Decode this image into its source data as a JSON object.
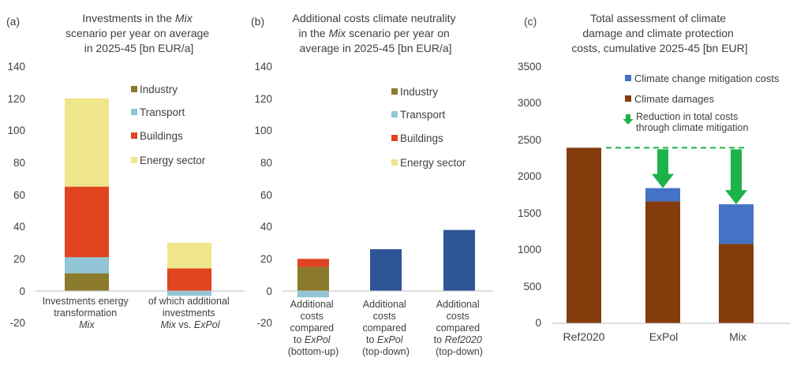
{
  "colors": {
    "industry": "#8B7A2B",
    "transport": "#92C5D6",
    "buildings": "#E04420",
    "energy_sector": "#F0E68C",
    "total": "#2E5597",
    "climate_damages": "#843C0C",
    "mitigation": "#4472C4",
    "arrow": "#1CB34A",
    "axis_text": "#404040"
  },
  "chart_data": [
    {
      "panel_label": "(a)",
      "type": "bar",
      "stacked": true,
      "title": [
        "Investments in the Mix",
        "scenario per year on average",
        "in 2025-45 [bn EUR/a]"
      ],
      "ylim": [
        -20,
        140
      ],
      "yticks": [
        "140",
        "120",
        "100",
        "80",
        "60",
        "40",
        "20",
        "0",
        "-20"
      ],
      "categories": [
        [
          "Investments energy",
          "transformation",
          "Mix"
        ],
        [
          "of which additional",
          "investments",
          "Mix vs. ExPol"
        ]
      ],
      "legend_placement": "top-right",
      "legend": [
        "Industry",
        "Transport",
        "Buildings",
        "Energy sector"
      ],
      "series": [
        {
          "name": "Industry",
          "values": [
            11,
            0
          ]
        },
        {
          "name": "Transport",
          "values": [
            10,
            -3
          ]
        },
        {
          "name": "Buildings",
          "values": [
            44,
            14
          ]
        },
        {
          "name": "Energy sector",
          "values": [
            55,
            16
          ]
        }
      ]
    },
    {
      "panel_label": "(b)",
      "type": "bar",
      "stacked": true,
      "title": [
        "Additional costs climate neutrality",
        "in the Mix scenario per year on",
        "average in 2025-45 [bn EUR/a]"
      ],
      "ylim": [
        -20,
        140
      ],
      "yticks": [
        "140",
        "120",
        "100",
        "80",
        "60",
        "40",
        "20",
        "0",
        "-20"
      ],
      "categories": [
        [
          "Additional",
          "costs",
          "compared",
          "to ExPol",
          "(bottom-up)"
        ],
        [
          "Additional",
          "costs",
          "compared",
          "to ExPol",
          "(top-down)"
        ],
        [
          "Additional",
          "costs",
          "compared",
          "to Ref2020",
          "(top-down)"
        ]
      ],
      "legend_placement": "top-right",
      "legend": [
        "Industry",
        "Transport",
        "Buildings",
        "Energy sector"
      ],
      "series": [
        {
          "name": "Industry",
          "values": [
            15,
            0,
            0
          ]
        },
        {
          "name": "Transport",
          "values": [
            -4,
            0,
            0
          ]
        },
        {
          "name": "Buildings",
          "values": [
            5,
            0,
            0
          ]
        },
        {
          "name": "Energy sector",
          "values": [
            0,
            0,
            0
          ]
        },
        {
          "values": [
            0,
            26,
            38
          ]
        }
      ]
    },
    {
      "panel_label": "(c)",
      "type": "bar",
      "stacked": true,
      "title": [
        "Total assessment of climate",
        "damage and climate protection",
        "costs, cumulative 2025-45 [bn EUR]"
      ],
      "ylim": [
        0,
        3500
      ],
      "yticks": [
        "3500",
        "3000",
        "2500",
        "2000",
        "1500",
        "1000",
        "500",
        "0"
      ],
      "categories": [
        "Ref2020",
        "ExPol",
        "Mix"
      ],
      "legend_placement": "top-right",
      "legend": [
        "Climate change mitigation costs",
        "Climate damages",
        "Reduction in total costs through climate mitigation"
      ],
      "series": [
        {
          "name": "Climate damages",
          "values": [
            2390,
            1660,
            1080
          ]
        },
        {
          "name": "Climate change mitigation costs",
          "values": [
            0,
            180,
            540
          ]
        }
      ],
      "reference_line": 2390
    }
  ]
}
